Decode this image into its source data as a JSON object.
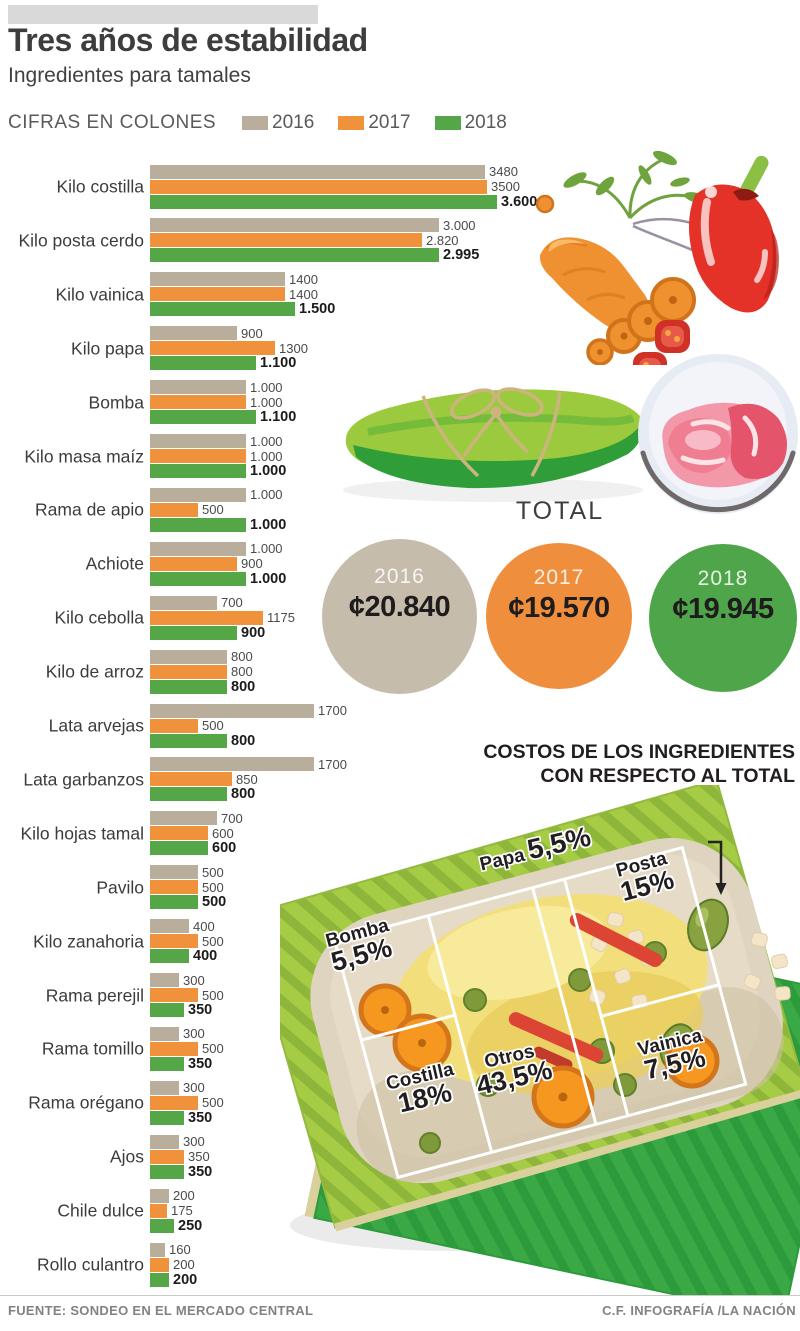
{
  "header": {
    "title": "Tres años de estabilidad",
    "subtitle": "Ingredientes para tamales",
    "legend_label": "CIFRAS EN COLONES",
    "years": [
      {
        "label": "2016",
        "color": "#b9ad9b"
      },
      {
        "label": "2017",
        "color": "#f0913c"
      },
      {
        "label": "2018",
        "color": "#54a647"
      }
    ]
  },
  "chart_data": {
    "type": "bar",
    "orientation": "horizontal",
    "title": "Ingredientes para tamales",
    "units": "colones",
    "xlim": [
      0,
      3600
    ],
    "legend_position": "top",
    "categories": [
      "Kilo costilla",
      "Kilo posta cerdo",
      "Kilo vainica",
      "Kilo papa",
      "Bomba",
      "Kilo masa maíz",
      "Rama de apio",
      "Achiote",
      "Kilo cebolla",
      "Kilo de arroz",
      "Lata arvejas",
      "Lata garbanzos",
      "Kilo hojas tamal",
      "Pavilo",
      "Kilo zanahoria",
      "Rama perejil",
      "Rama tomillo",
      "Rama orégano",
      "Ajos",
      "Chile dulce",
      "Rollo culantro"
    ],
    "series": [
      {
        "name": "2016",
        "color": "#b9ad9b",
        "values": [
          3480,
          3000,
          1400,
          900,
          1000,
          1000,
          1000,
          1000,
          700,
          800,
          1700,
          1700,
          700,
          500,
          400,
          300,
          300,
          300,
          300,
          200,
          160
        ]
      },
      {
        "name": "2017",
        "color": "#f0913c",
        "values": [
          3500,
          2820,
          1400,
          1300,
          1000,
          1000,
          500,
          900,
          1175,
          800,
          500,
          850,
          600,
          500,
          500,
          500,
          500,
          500,
          350,
          175,
          200
        ]
      },
      {
        "name": "2018",
        "color": "#54a647",
        "values": [
          3600,
          2995,
          1500,
          1100,
          1100,
          1000,
          1000,
          1000,
          900,
          800,
          800,
          800,
          600,
          500,
          400,
          350,
          350,
          350,
          350,
          250,
          200
        ]
      }
    ],
    "value_labels": [
      [
        "3480",
        "3500",
        "3.600"
      ],
      [
        "3.000",
        "2.820",
        "2.995"
      ],
      [
        "1400",
        "1400",
        "1.500"
      ],
      [
        "900",
        "1300",
        "1.100"
      ],
      [
        "1.000",
        "1.000",
        "1.100"
      ],
      [
        "1.000",
        "1.000",
        "1.000"
      ],
      [
        "1.000",
        "500",
        "1.000"
      ],
      [
        "1.000",
        "900",
        "1.000"
      ],
      [
        "700",
        "1175",
        "900"
      ],
      [
        "800",
        "800",
        "800"
      ],
      [
        "1700",
        "500",
        "800"
      ],
      [
        "1700",
        "850",
        "800"
      ],
      [
        "700",
        "600",
        "600"
      ],
      [
        "500",
        "500",
        "500"
      ],
      [
        "400",
        "500",
        "400"
      ],
      [
        "300",
        "500",
        "350"
      ],
      [
        "300",
        "500",
        "350"
      ],
      [
        "300",
        "500",
        "350"
      ],
      [
        "300",
        "350",
        "350"
      ],
      [
        "200",
        "175",
        "250"
      ],
      [
        "160",
        "200",
        "200"
      ]
    ]
  },
  "totals": {
    "heading": "TOTAL",
    "items": [
      {
        "year": "2016",
        "value": "¢20.840",
        "color": "#c6bcac"
      },
      {
        "year": "2017",
        "value": "¢19.570",
        "color": "#ef8f3d"
      },
      {
        "year": "2018",
        "value": "¢19.945",
        "color": "#4fa64a"
      }
    ]
  },
  "cost_share": {
    "title_line1": "COSTOS DE LOS INGREDIENTES",
    "title_line2": "CON RESPECTO AL TOTAL",
    "segments": [
      {
        "name": "Papa",
        "pct": "5,5%"
      },
      {
        "name": "Posta",
        "pct": "15%"
      },
      {
        "name": "Bomba",
        "pct": "5,5%"
      },
      {
        "name": "Vainica",
        "pct": "7,5%"
      },
      {
        "name": "Costilla",
        "pct": "18%"
      },
      {
        "name": "Otros",
        "pct": "43,5%"
      }
    ]
  },
  "footer": {
    "source": "FUENTE: SONDEO EN EL MERCADO CENTRAL",
    "credit": "C.F. INFOGRAFÍA /LA NACIÓN"
  }
}
